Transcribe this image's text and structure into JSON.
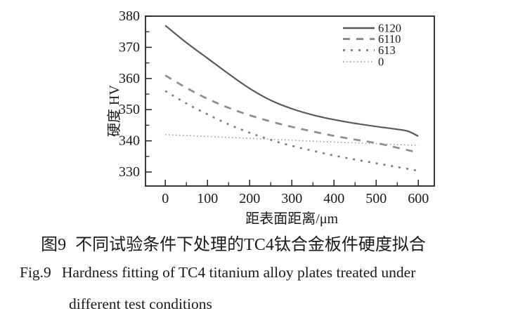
{
  "figure": {
    "caption_zh_label": "图9",
    "caption_zh_text": "不同试验条件下处理的TC4钛合金板件硬度拟合",
    "caption_en_label": "Fig.9",
    "caption_en_line1": "Hardness fitting of TC4 titanium alloy plates treated under",
    "caption_en_line2": "different test conditions"
  },
  "chart_data": {
    "type": "line",
    "title": "",
    "xlabel": "距表面距离/μm",
    "ylabel": "硬度 HV",
    "xlim": [
      -47,
      638
    ],
    "ylim": [
      325.5,
      380
    ],
    "x_major_ticks": [
      0,
      100,
      200,
      300,
      400,
      500,
      600
    ],
    "x_minor_ticks": [
      50,
      150,
      250,
      350,
      450,
      550
    ],
    "y_major_ticks": [
      330,
      340,
      350,
      360,
      370,
      380
    ],
    "y_minor_ticks": [
      335,
      345,
      355,
      365,
      375
    ],
    "grid": false,
    "legend_position": "top-right",
    "axis_color": "#222222",
    "text_color": "#1a1a1a",
    "series": [
      {
        "name": "6120",
        "style": "solid",
        "color": "#595959",
        "width": 2.2,
        "dash": "",
        "x": [
          0,
          50,
          100,
          150,
          200,
          250,
          300,
          350,
          400,
          450,
          500,
          550,
          575,
          600
        ],
        "y": [
          377,
          371.5,
          366.5,
          361.5,
          356.8,
          353,
          350.3,
          348.3,
          346.8,
          345.6,
          344.6,
          343.7,
          343.1,
          341.5
        ]
      },
      {
        "name": "6110",
        "style": "dashed",
        "color": "#8c8c8c",
        "width": 2.7,
        "dash": "10 9",
        "x": [
          0,
          50,
          100,
          150,
          200,
          250,
          300,
          350,
          400,
          450,
          500,
          550,
          600
        ],
        "y": [
          361,
          357,
          353.5,
          350.6,
          348.2,
          346.2,
          344.5,
          343,
          341.6,
          340.4,
          339.3,
          337.8,
          336.2
        ]
      },
      {
        "name": "613",
        "style": "short-dash",
        "color": "#7a7a7a",
        "width": 2.6,
        "dash": "3 8",
        "x": [
          0,
          50,
          100,
          150,
          200,
          250,
          300,
          350,
          400,
          450,
          500,
          550,
          600
        ],
        "y": [
          356,
          352,
          348.5,
          345.3,
          342.6,
          340.3,
          338.4,
          336.8,
          335.3,
          334,
          332.8,
          331.6,
          330.4
        ]
      },
      {
        "name": "0",
        "style": "dotted",
        "color": "#9b9b9b",
        "width": 1.6,
        "dash": "1.5 3.5",
        "x": [
          0,
          100,
          200,
          300,
          400,
          500,
          600
        ],
        "y": [
          342,
          341.4,
          340.8,
          340.2,
          339.6,
          339.1,
          338.5
        ]
      }
    ]
  }
}
